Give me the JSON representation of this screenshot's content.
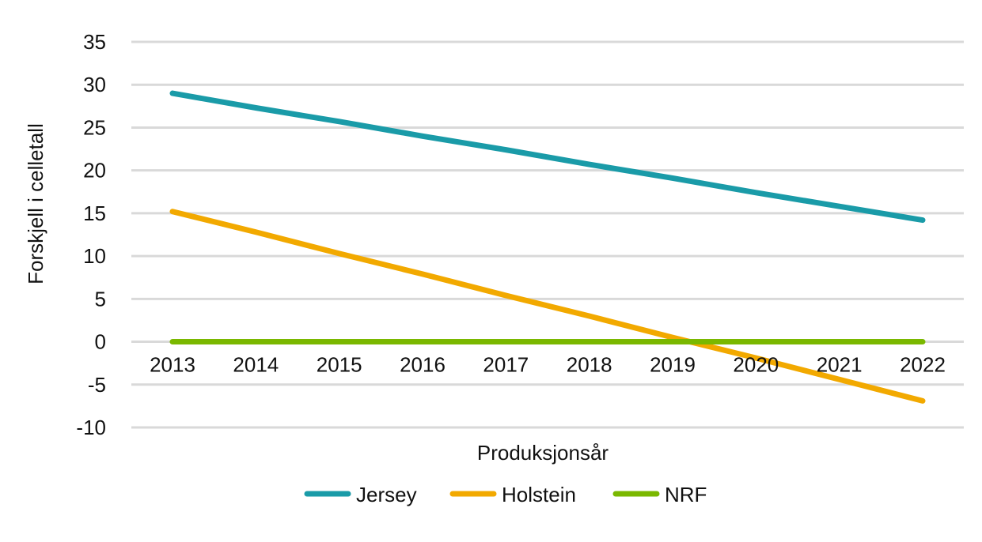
{
  "chart_data": {
    "type": "line",
    "title": "",
    "xlabel": "Produksjonsår",
    "ylabel": "Forskjell i celletall",
    "categories": [
      "2013",
      "2014",
      "2015",
      "2016",
      "2017",
      "2018",
      "2019",
      "2020",
      "2021",
      "2022"
    ],
    "y_ticks": [
      "35",
      "30",
      "25",
      "20",
      "15",
      "10",
      "5",
      "0",
      "-5",
      "-10"
    ],
    "ylim": [
      -10,
      35
    ],
    "grid": true,
    "legend_position": "bottom",
    "series": [
      {
        "name": "Jersey",
        "color": "#1a9ba8",
        "values": [
          29.0,
          27.3,
          25.7,
          24.0,
          22.4,
          20.7,
          19.1,
          17.4,
          15.8,
          14.2
        ]
      },
      {
        "name": "Holstein",
        "color": "#f2a900",
        "values": [
          15.2,
          12.8,
          10.3,
          7.9,
          5.4,
          3.0,
          0.5,
          -1.9,
          -4.4,
          -6.9
        ]
      },
      {
        "name": "NRF",
        "color": "#7ab800",
        "values": [
          0,
          0,
          0,
          0,
          0,
          0,
          0,
          0,
          0,
          0
        ]
      }
    ]
  }
}
